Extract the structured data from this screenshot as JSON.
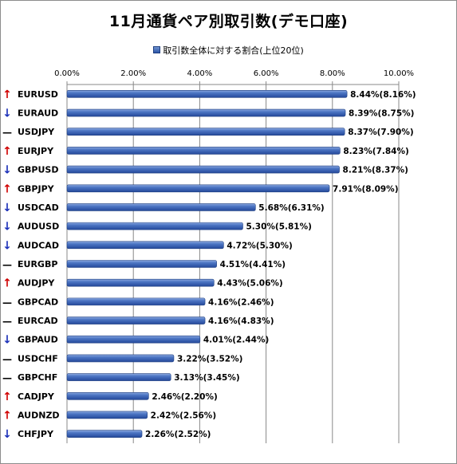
{
  "chart_data": {
    "type": "bar",
    "orientation": "horizontal",
    "title": "11月通貨ペア別取引数(デモ口座)",
    "legend": "取引数全体に対する割合(上位20位)",
    "legend_position": "top",
    "xlim": [
      0,
      10
    ],
    "x_ticks": [
      "0.00%",
      "2.00%",
      "4.00%",
      "6.00%",
      "8.00%",
      "10.00%"
    ],
    "grid": "vertical",
    "colors": {
      "bar": "#3a64b4",
      "bar_light": "#7a9ad6",
      "up_arrow": "#d00000",
      "down_arrow": "#1a2fb8",
      "flat": "#000000"
    },
    "categories": [
      "EURUSD",
      "EURAUD",
      "USDJPY",
      "EURJPY",
      "GBPUSD",
      "GBPJPY",
      "USDCAD",
      "AUDUSD",
      "AUDCAD",
      "EURGBP",
      "AUDJPY",
      "GBPCAD",
      "EURCAD",
      "GBPAUD",
      "USDCHF",
      "GBPCHF",
      "CADJPY",
      "AUDNZD",
      "CHFJPY"
    ],
    "trend_icons": [
      "↑",
      "↓",
      "—",
      "↑",
      "↓",
      "↑",
      "↓",
      "↓",
      "↓",
      "—",
      "↑",
      "—",
      "—",
      "↓",
      "—",
      "—",
      "↑",
      "↑",
      "↓"
    ],
    "values": [
      8.44,
      8.39,
      8.37,
      8.23,
      8.21,
      7.91,
      5.68,
      5.3,
      4.72,
      4.51,
      4.43,
      4.16,
      4.16,
      4.01,
      3.22,
      3.13,
      2.46,
      2.42,
      2.26
    ],
    "data_labels": [
      "8.44%(8.16%)",
      "8.39%(8.75%)",
      "8.37%(7.90%)",
      "8.23%(7.84%)",
      "8.21%(8.37%)",
      "7.91%(8.09%)",
      "5.68%(6.31%)",
      "5.30%(5.81%)",
      "4.72%(5.30%)",
      "4.51%(4.41%)",
      "4.43%(5.06%)",
      "4.16%(2.46%)",
      "4.16%(4.83%)",
      "4.01%(2.44%)",
      "3.22%(3.52%)",
      "3.13%(3.45%)",
      "2.46%(2.20%)",
      "2.42%(2.56%)",
      "2.26%(2.52%)"
    ]
  }
}
